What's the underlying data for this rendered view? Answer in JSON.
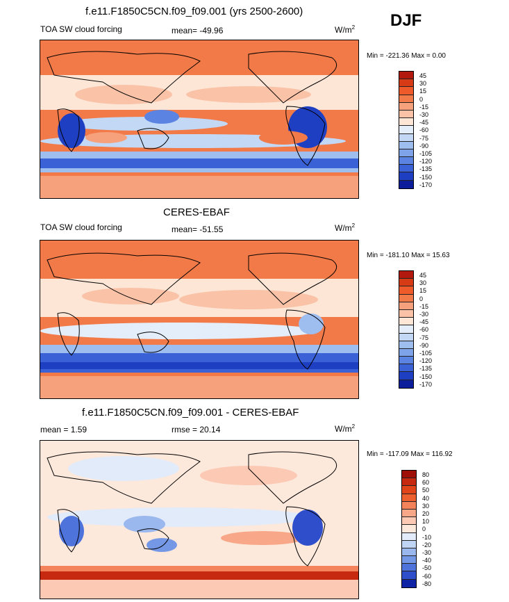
{
  "season": "DJF",
  "units_prefix": "W/m",
  "units_sup": "2",
  "panels": [
    {
      "title": "f.e11.F1850C5CN.f09_f09.001 (yrs 2500-2600)",
      "left_label": "TOA SW cloud forcing",
      "stat": "mean= -49.96",
      "minmax": "Min = -221.36 Max =   0.00",
      "levels": [
        "45",
        "30",
        "15",
        "0",
        "-15",
        "-30",
        "-45",
        "-60",
        "-75",
        "-90",
        "-105",
        "-120",
        "-135",
        "-150",
        "-170"
      ],
      "colors": [
        "#b2180e",
        "#d63b16",
        "#ee5a2a",
        "#f27a48",
        "#f6a07c",
        "#fac3a8",
        "#fde6d6",
        "#e4eefa",
        "#c2d8f5",
        "#9fbef0",
        "#7ea3e9",
        "#5b84e2",
        "#3a61d6",
        "#1f3fc2",
        "#0c1d9c"
      ]
    },
    {
      "title": "CERES-EBAF",
      "left_label": "TOA SW cloud forcing",
      "stat": "mean= -51.55",
      "minmax": "Min = -181.10 Max =  15.63",
      "levels": [
        "45",
        "30",
        "15",
        "0",
        "-15",
        "-30",
        "-45",
        "-60",
        "-75",
        "-90",
        "-105",
        "-120",
        "-135",
        "-150",
        "-170"
      ],
      "colors": [
        "#b2180e",
        "#d63b16",
        "#ee5a2a",
        "#f27a48",
        "#f6a07c",
        "#fac3a8",
        "#fde6d6",
        "#e4eefa",
        "#c2d8f5",
        "#9fbef0",
        "#7ea3e9",
        "#5b84e2",
        "#3a61d6",
        "#1f3fc2",
        "#0c1d9c"
      ]
    },
    {
      "title": "f.e11.F1850C5CN.f09_f09.001 - CERES-EBAF",
      "left_label": "mean =   1.59",
      "stat": "rmse =  20.14",
      "minmax": "Min = -117.09 Max = 116.92",
      "levels": [
        "80",
        "60",
        "50",
        "40",
        "30",
        "20",
        "10",
        "0",
        "-10",
        "-20",
        "-30",
        "-40",
        "-50",
        "-60",
        "-80"
      ],
      "colors": [
        "#9e0f08",
        "#c62810",
        "#e04418",
        "#ee6030",
        "#f4825a",
        "#f8a888",
        "#fccab4",
        "#fde8dc",
        "#e2ebf9",
        "#c0d4f4",
        "#9ab8ee",
        "#7498e6",
        "#4e74dc",
        "#2e4ecb",
        "#0f24a4"
      ]
    }
  ]
}
